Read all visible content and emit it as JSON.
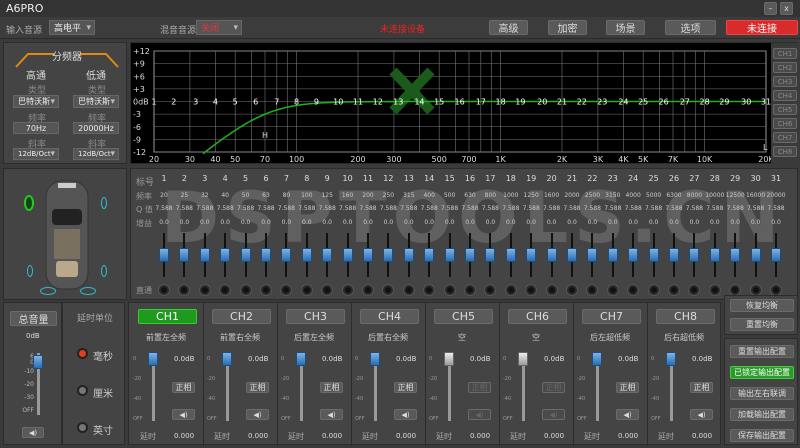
{
  "window": {
    "title": "A6PRO",
    "minimize": "–",
    "close": "x"
  },
  "toolbar": {
    "input_label": "输入音源",
    "input_value": "高电平",
    "mix_label": "混音音源",
    "mix_value": "关闭",
    "status": "未连接设备",
    "buttons": [
      "高级",
      "加密",
      "场景",
      "选项"
    ],
    "connect": "未连接"
  },
  "crossover": {
    "title": "分频器",
    "high": {
      "title": "高通",
      "type_label": "类型",
      "type": "巴特沃斯",
      "freq_label": "频率",
      "freq": "70Hz",
      "slope_label": "斜率",
      "slope": "12dB/Oct"
    },
    "low": {
      "title": "低通",
      "type_label": "类型",
      "type": "巴特沃斯",
      "freq_label": "频率",
      "freq": "20000Hz",
      "slope_label": "斜率",
      "slope": "12dB/Oct"
    }
  },
  "graph": {
    "y_ticks": [
      "+12",
      "+9",
      "+6",
      "+3",
      "0dB",
      "-3",
      "-6",
      "-9",
      "-12"
    ],
    "x_ticks": [
      {
        "f": 20,
        "t": "20"
      },
      {
        "f": 30,
        "t": "30"
      },
      {
        "f": 40,
        "t": "40"
      },
      {
        "f": 50,
        "t": "50"
      },
      {
        "f": 70,
        "t": "70"
      },
      {
        "f": 100,
        "t": "100"
      },
      {
        "f": 200,
        "t": "200"
      },
      {
        "f": 300,
        "t": "300"
      },
      {
        "f": 500,
        "t": "500"
      },
      {
        "f": 700,
        "t": "700"
      },
      {
        "f": 1000,
        "t": "1K"
      },
      {
        "f": 2000,
        "t": "2K"
      },
      {
        "f": 3000,
        "t": "3K"
      },
      {
        "f": 4000,
        "t": "4K"
      },
      {
        "f": 5000,
        "t": "5K"
      },
      {
        "f": 7000,
        "t": "7K"
      },
      {
        "f": 10000,
        "t": "10K"
      },
      {
        "f": 20000,
        "t": "20K"
      }
    ],
    "hp_marker": "H",
    "lp_marker": "L",
    "hp_freq": 70,
    "curve_color": "#1db31d",
    "channels": [
      "CH1",
      "CH2",
      "CH3",
      "CH4",
      "CH5",
      "CH6",
      "CH7",
      "CH8"
    ]
  },
  "eq": {
    "watermark": "DSPTOOLS.CN",
    "row_labels": {
      "band": "标号",
      "freq": "频率",
      "q": "Q 值",
      "gain": "增益",
      "bypass": "直通"
    },
    "freqs": [
      "20",
      "25",
      "32",
      "40",
      "50",
      "63",
      "80",
      "100",
      "125",
      "160",
      "200",
      "250",
      "315",
      "400",
      "500",
      "630",
      "800",
      "1000",
      "1250",
      "1600",
      "2000",
      "2500",
      "3150",
      "4000",
      "5000",
      "6300",
      "8000",
      "10000",
      "12500",
      "16000",
      "20000"
    ],
    "q": "7.588",
    "gain": "0.0"
  },
  "master": {
    "label": "总音量",
    "value": "0dB",
    "scale": [
      "6",
      "0",
      "-10",
      "-20",
      "-30",
      "OFF"
    ],
    "level_db": 0
  },
  "delay_unit": {
    "title": "延时单位",
    "options": [
      "毫秒",
      "厘米",
      "英寸"
    ],
    "selected": 0
  },
  "channels": [
    {
      "name": "CH1",
      "label": "前置左全频",
      "gain": "0.0dB",
      "phase": "正相",
      "delay_label": "延时",
      "delay": "0.000",
      "active": true,
      "enabled": true
    },
    {
      "name": "CH2",
      "label": "前置右全频",
      "gain": "0.0dB",
      "phase": "正相",
      "delay_label": "延时",
      "delay": "0.000",
      "active": false,
      "enabled": true
    },
    {
      "name": "CH3",
      "label": "后置左全频",
      "gain": "0.0dB",
      "phase": "正相",
      "delay_label": "延时",
      "delay": "0.000",
      "active": false,
      "enabled": true
    },
    {
      "name": "CH4",
      "label": "后置右全频",
      "gain": "0.0dB",
      "phase": "正相",
      "delay_label": "延时",
      "delay": "0.000",
      "active": false,
      "enabled": true
    },
    {
      "name": "CH5",
      "label": "空",
      "gain": "0.0dB",
      "phase": "正相",
      "delay_label": "延时",
      "delay": "0.000",
      "active": false,
      "enabled": false
    },
    {
      "name": "CH6",
      "label": "空",
      "gain": "0.0dB",
      "phase": "正相",
      "delay_label": "延时",
      "delay": "0.000",
      "active": false,
      "enabled": false
    },
    {
      "name": "CH7",
      "label": "后左超低频",
      "gain": "0.0dB",
      "phase": "正相",
      "delay_label": "延时",
      "delay": "0.000",
      "active": false,
      "enabled": true
    },
    {
      "name": "CH8",
      "label": "后右超低频",
      "gain": "0.0dB",
      "phase": "正相",
      "delay_label": "延时",
      "delay": "0.000",
      "active": false,
      "enabled": true
    }
  ],
  "channel_scale": [
    "0",
    "-20",
    "-40",
    "OFF"
  ],
  "right": {
    "eq_buttons": [
      "恢复均衡",
      "重置均衡"
    ],
    "out_buttons": [
      "重置输出配置",
      "已锁定输出配置",
      "输出左右联调",
      "加载输出配置",
      "保存输出配置"
    ],
    "locked_color": "#2a9a2a"
  }
}
